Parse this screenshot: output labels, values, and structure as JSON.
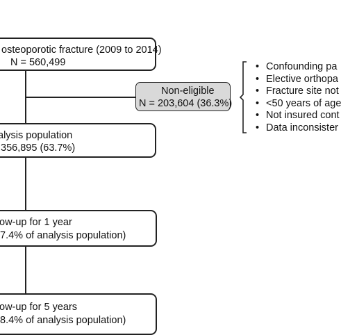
{
  "diagram": {
    "box_total": {
      "line1": "osteoporotic fracture (2009 to 2014)",
      "line2": "N = 560,499"
    },
    "box_noneligible": {
      "line1": "Non-eligible",
      "line2": "N = 203,604 (36.3%)",
      "fill": "#d9d9d9"
    },
    "exclusions": [
      "Confounding pa",
      "Elective orthopa",
      "Fracture site not",
      "<50 years of age",
      "Not insured cont",
      "Data inconsister"
    ],
    "box_analysis": {
      "line1": "alysis population",
      "line2": "356,895 (63.7%)"
    },
    "box_followup_1y": {
      "line1": "ow-up for 1 year",
      "line2": "7.4% of analysis population)"
    },
    "box_followup_5y": {
      "line1": "ow-up for 5 years",
      "line2": "8.4% of analysis population)"
    }
  }
}
